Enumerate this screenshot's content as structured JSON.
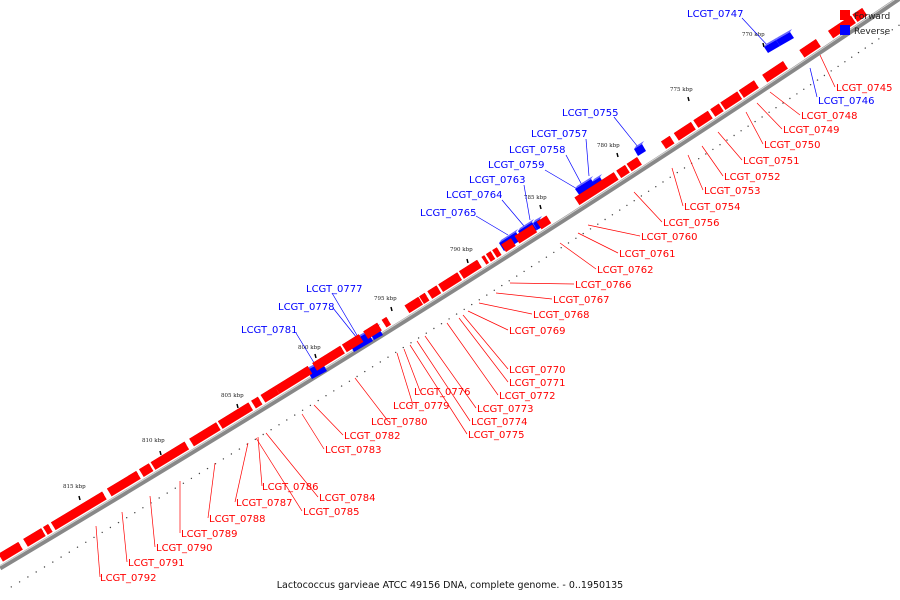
{
  "caption": "Lactococcus garvieae ATCC 49156 DNA, complete genome. - 0..1950135",
  "legend": [
    {
      "label": "Forward",
      "color": "#ff0000"
    },
    {
      "label": "Reverse",
      "color": "#0000ff"
    }
  ],
  "colors": {
    "forward": "#ff0000",
    "reverse": "#0000ff",
    "backbone": "#888888"
  },
  "ticks": [
    "770 kbp",
    "775 kbp",
    "780 kbp",
    "785 kbp",
    "790 kbp",
    "795 kbp",
    "800 kbp",
    "805 kbp",
    "810 kbp",
    "815 kbp"
  ],
  "genes_forward": [
    "LCGT_0745",
    "LCGT_0748",
    "LCGT_0749",
    "LCGT_0750",
    "LCGT_0751",
    "LCGT_0752",
    "LCGT_0753",
    "LCGT_0754",
    "LCGT_0756",
    "LCGT_0760",
    "LCGT_0761",
    "LCGT_0762",
    "LCGT_0766",
    "LCGT_0767",
    "LCGT_0768",
    "LCGT_0769",
    "LCGT_0770",
    "LCGT_0771",
    "LCGT_0772",
    "LCGT_0773",
    "LCGT_0774",
    "LCGT_0775",
    "LCGT_0776",
    "LCGT_0779",
    "LCGT_0780",
    "LCGT_0782",
    "LCGT_0783",
    "LCGT_0784",
    "LCGT_0785",
    "LCGT_0786",
    "LCGT_0787",
    "LCGT_0788",
    "LCGT_0789",
    "LCGT_0790",
    "LCGT_0791",
    "LCGT_0792"
  ],
  "genes_reverse": [
    "LCGT_0746",
    "LCGT_0747",
    "LCGT_0755",
    "LCGT_0757",
    "LCGT_0758",
    "LCGT_0759",
    "LCGT_0763",
    "LCGT_0764",
    "LCGT_0765",
    "LCGT_0777",
    "LCGT_0778",
    "LCGT_0781"
  ]
}
